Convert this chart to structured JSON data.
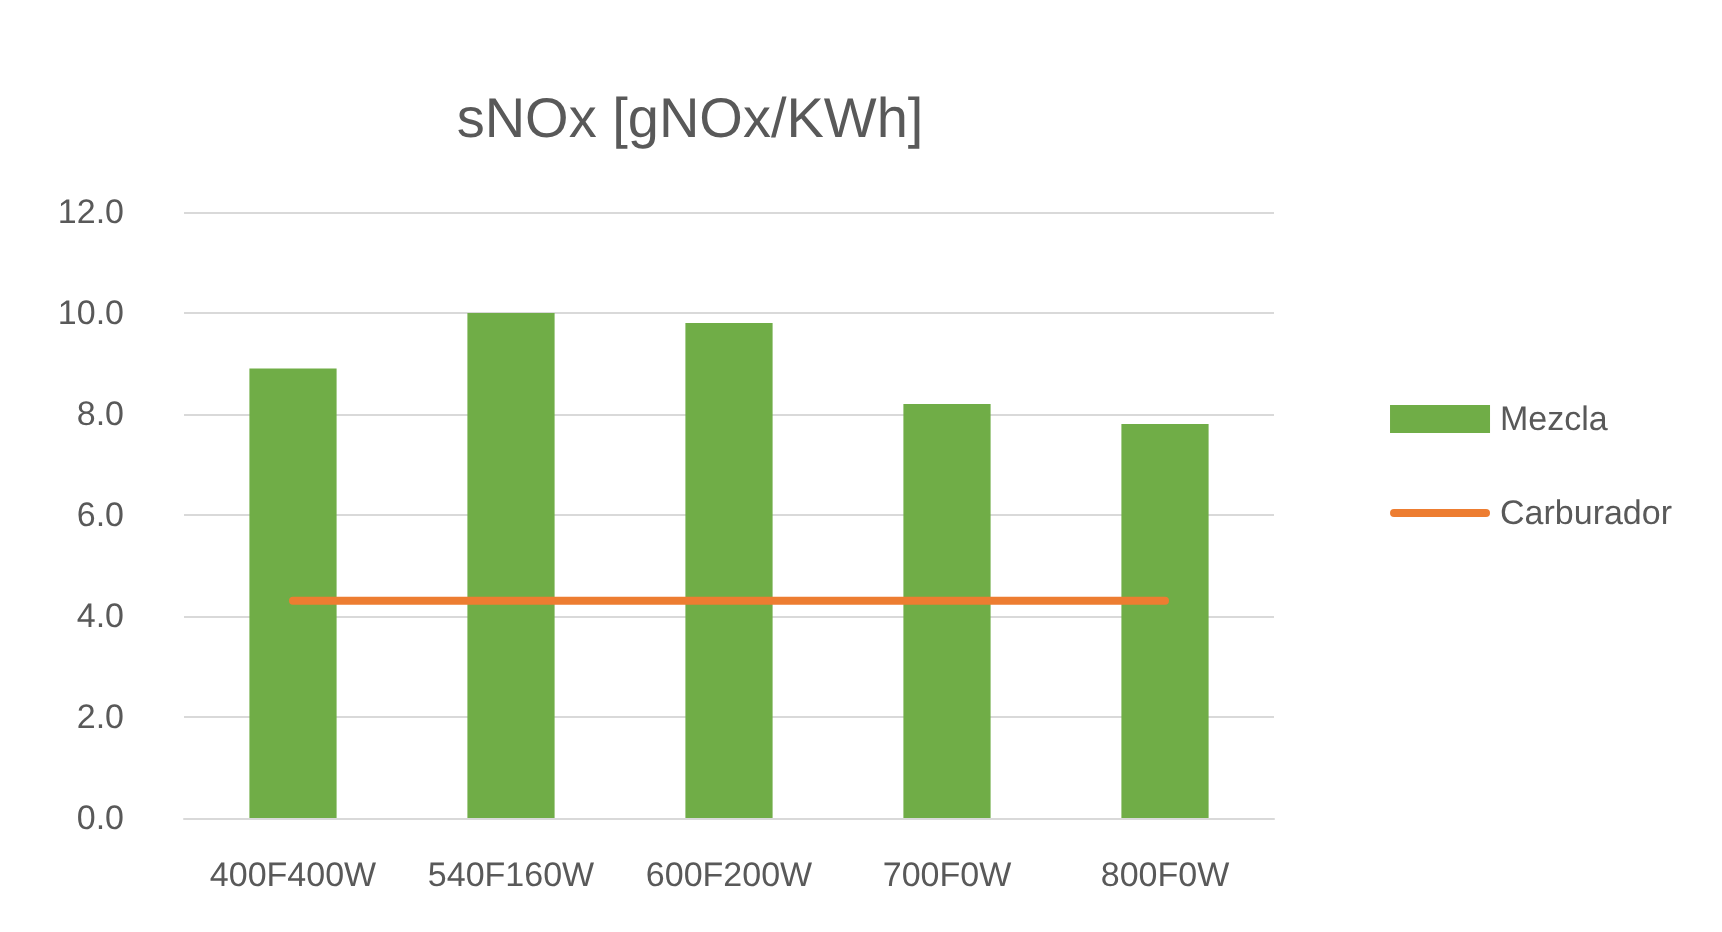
{
  "chart_data": {
    "type": "bar",
    "title": "sNOx [gNOx/KWh]",
    "categories": [
      "400F400W",
      "540F160W",
      "600F200W",
      "700F0W",
      "800F0W"
    ],
    "series": [
      {
        "name": "Mezcla",
        "color": "#70ad47",
        "values": [
          8.9,
          10.0,
          9.8,
          8.2,
          7.8
        ]
      },
      {
        "name": "Carburador",
        "type": "line",
        "color": "#ed7d31",
        "values": [
          4.3,
          4.3,
          4.3,
          4.3,
          4.3
        ]
      }
    ],
    "ylim": [
      0,
      12
    ],
    "yticks": [
      {
        "value": 0,
        "label": "0.0"
      },
      {
        "value": 2,
        "label": "2.0"
      },
      {
        "value": 4,
        "label": "4.0"
      },
      {
        "value": 6,
        "label": "6.0"
      },
      {
        "value": 8,
        "label": "8.0"
      },
      {
        "value": 10,
        "label": "10.0"
      },
      {
        "value": 12,
        "label": "12.0"
      }
    ],
    "grid": "y",
    "legend": "right",
    "marker": "none"
  }
}
